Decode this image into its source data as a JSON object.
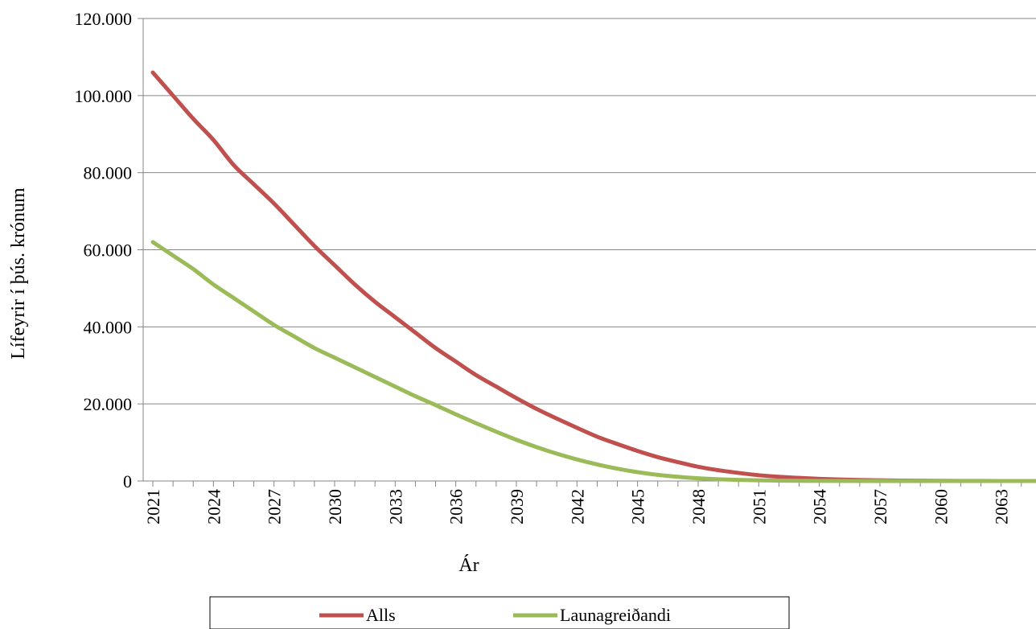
{
  "chart_data": {
    "type": "line",
    "xlabel": "Ár",
    "ylabel": "Lífeyrir í þús. krónum",
    "ylim": [
      0,
      120000
    ],
    "y_ticks": [
      "0",
      "20.000",
      "40.000",
      "60.000",
      "80.000",
      "100.000",
      "120.000"
    ],
    "y_tick_values": [
      0,
      20000,
      40000,
      60000,
      80000,
      100000,
      120000
    ],
    "x_tick_labels": [
      "2021",
      "2024",
      "2027",
      "2030",
      "2033",
      "2036",
      "2039",
      "2042",
      "2045",
      "2048",
      "2051",
      "2054",
      "2057",
      "2060",
      "2063"
    ],
    "x": [
      2021,
      2022,
      2023,
      2024,
      2025,
      2026,
      2027,
      2028,
      2029,
      2030,
      2031,
      2032,
      2033,
      2034,
      2035,
      2036,
      2037,
      2038,
      2039,
      2040,
      2041,
      2042,
      2043,
      2044,
      2045,
      2046,
      2047,
      2048,
      2049,
      2050,
      2051,
      2052,
      2053,
      2054,
      2055,
      2056,
      2057,
      2058,
      2059,
      2060,
      2061,
      2062,
      2063,
      2064,
      2065,
      2066
    ],
    "grid": "horizontal",
    "legend_position": "bottom",
    "series": [
      {
        "name": "Alls",
        "color": "#c0504d",
        "values": [
          106000,
          100000,
          94000,
          88500,
          82000,
          77000,
          72000,
          66500,
          61000,
          56000,
          51000,
          46500,
          42500,
          38500,
          34500,
          31000,
          27500,
          24500,
          21500,
          18700,
          16200,
          13800,
          11500,
          9600,
          7800,
          6200,
          4900,
          3700,
          2800,
          2100,
          1500,
          1100,
          800,
          550,
          380,
          250,
          170,
          110,
          70,
          45,
          30,
          20,
          12,
          8,
          5,
          3
        ]
      },
      {
        "name": "Launagreiðandi",
        "color": "#9bbb59",
        "values": [
          62000,
          58500,
          55000,
          51000,
          47500,
          44000,
          40500,
          37500,
          34500,
          32000,
          29500,
          27000,
          24500,
          22000,
          19700,
          17300,
          15000,
          12800,
          10700,
          8800,
          7100,
          5600,
          4300,
          3200,
          2300,
          1600,
          1100,
          700,
          450,
          280,
          170,
          100,
          60,
          35,
          20,
          12,
          7,
          4,
          2,
          1,
          1,
          0,
          0,
          0,
          0,
          0
        ]
      }
    ]
  }
}
